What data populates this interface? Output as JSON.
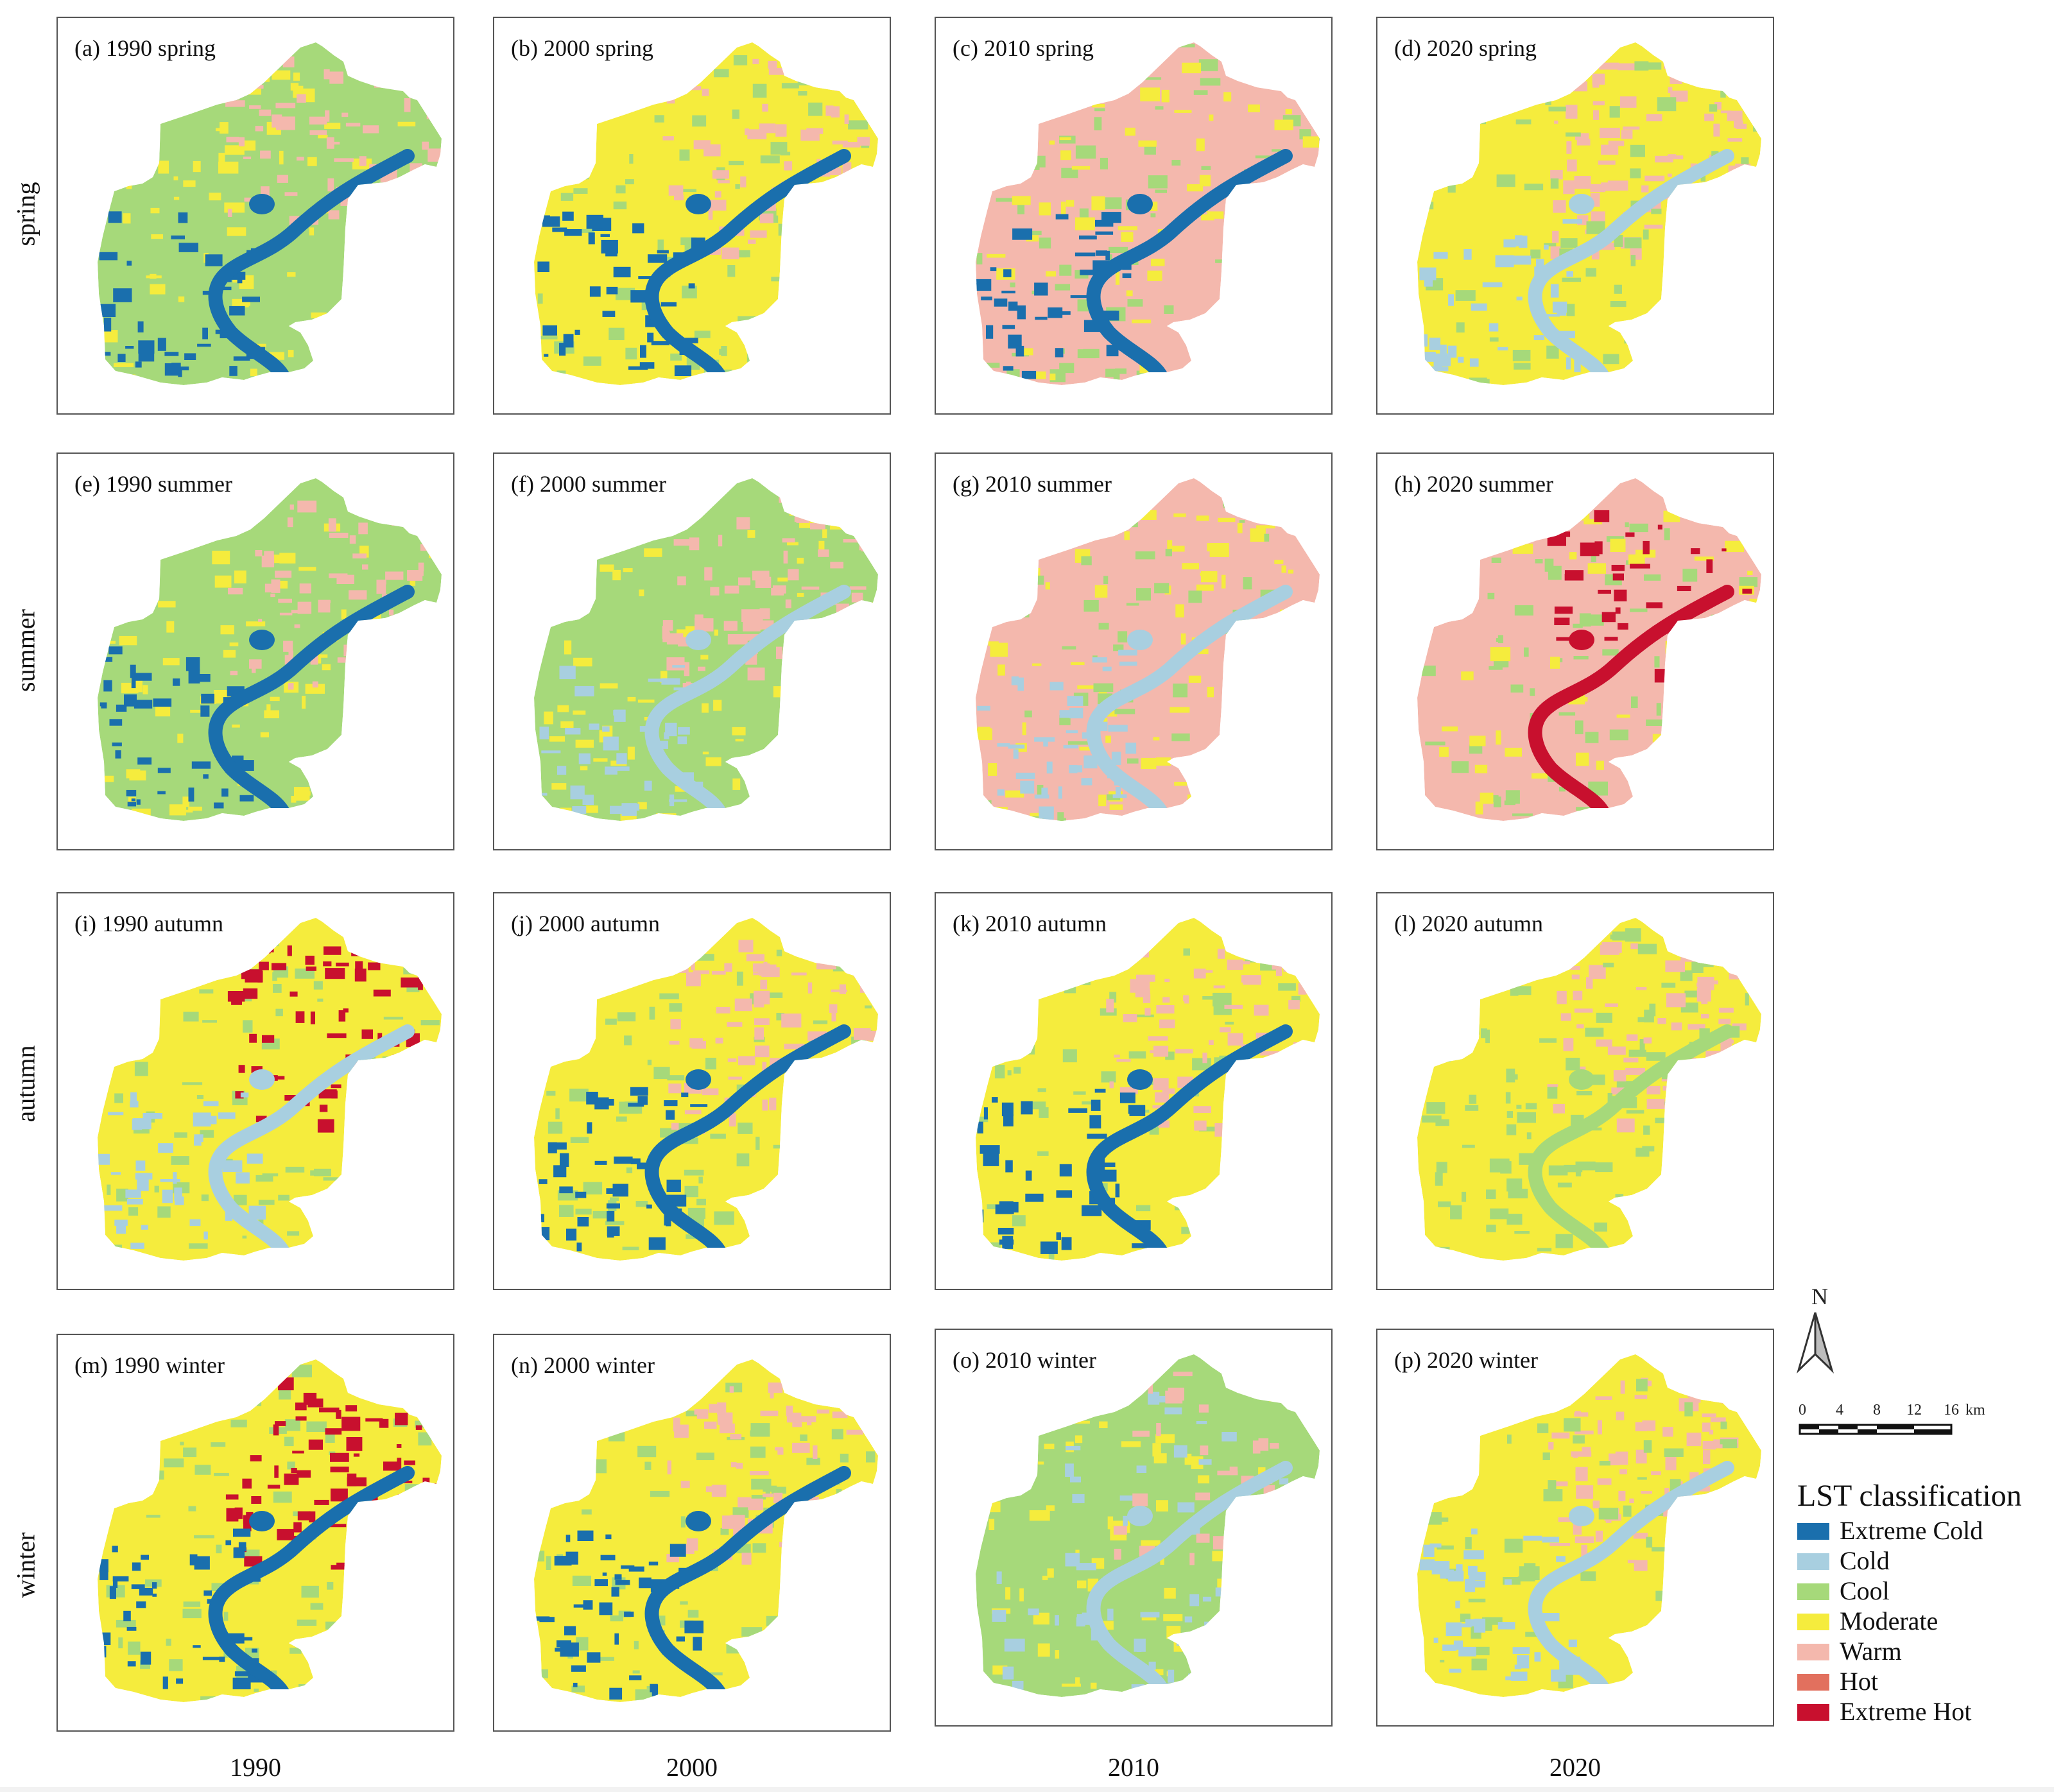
{
  "rows": [
    {
      "label": "spring",
      "panels": [
        "(a) 1990 spring",
        "(b) 2000 spring",
        "(c) 2010 spring",
        "(d) 2020 spring"
      ]
    },
    {
      "label": "summer",
      "panels": [
        "(e) 1990 summer",
        "(f) 2000 summer",
        "(g) 2010 summer",
        "(h) 2020 summer"
      ]
    },
    {
      "label": "autumn",
      "panels": [
        "(i) 1990 autumn",
        "(j) 2000 autumn",
        "(k) 2010 autumn",
        "(l) 2020 autumn"
      ]
    },
    {
      "label": "winter",
      "panels": [
        "(m) 1990 winter",
        "(n) 2000 winter",
        "(o) 2010 winter",
        "(p) 2020 winter"
      ]
    }
  ],
  "columns": [
    "1990",
    "2000",
    "2010",
    "2020"
  ],
  "north_arrow": {
    "label": "N"
  },
  "scale_bar": {
    "ticks": [
      "0",
      "4",
      "8",
      "12",
      "16"
    ],
    "unit": "km"
  },
  "legend": {
    "title": "LST classification",
    "items": [
      {
        "label": "Extreme Cold",
        "color": "#1a6fad"
      },
      {
        "label": "Cold",
        "color": "#a8cfe0"
      },
      {
        "label": "Cool",
        "color": "#a6d97a"
      },
      {
        "label": "Moderate",
        "color": "#f5ec3d"
      },
      {
        "label": "Warm",
        "color": "#f4b8ad"
      },
      {
        "label": "Hot",
        "color": "#e2705e"
      },
      {
        "label": "Extreme Hot",
        "color": "#c8102e"
      }
    ]
  },
  "panel_dominant_classes": [
    [
      "Cool",
      "Moderate",
      "Warm",
      "Extreme Cold"
    ],
    [
      "Moderate",
      "Cool",
      "Warm",
      "Extreme Cold"
    ],
    [
      "Warm",
      "Cool",
      "Moderate",
      "Extreme Cold"
    ],
    [
      "Moderate",
      "Warm",
      "Cool",
      "Cold"
    ],
    [
      "Cool",
      "Moderate",
      "Warm",
      "Extreme Cold"
    ],
    [
      "Cool",
      "Moderate",
      "Warm",
      "Cold"
    ],
    [
      "Warm",
      "Moderate",
      "Cool",
      "Cold"
    ],
    [
      "Warm",
      "Cool",
      "Moderate",
      "Extreme Hot"
    ],
    [
      "Moderate",
      "Cool",
      "Extreme Hot",
      "Cold"
    ],
    [
      "Moderate",
      "Cool",
      "Warm",
      "Extreme Cold"
    ],
    [
      "Moderate",
      "Cool",
      "Warm",
      "Extreme Cold"
    ],
    [
      "Moderate",
      "Cool",
      "Warm",
      "Cool"
    ],
    [
      "Moderate",
      "Cool",
      "Extreme Hot",
      "Extreme Cold"
    ],
    [
      "Moderate",
      "Cool",
      "Warm",
      "Extreme Cold"
    ],
    [
      "Cool",
      "Moderate",
      "Cold",
      "Warm"
    ],
    [
      "Moderate",
      "Warm",
      "Cool",
      "Cold"
    ]
  ]
}
